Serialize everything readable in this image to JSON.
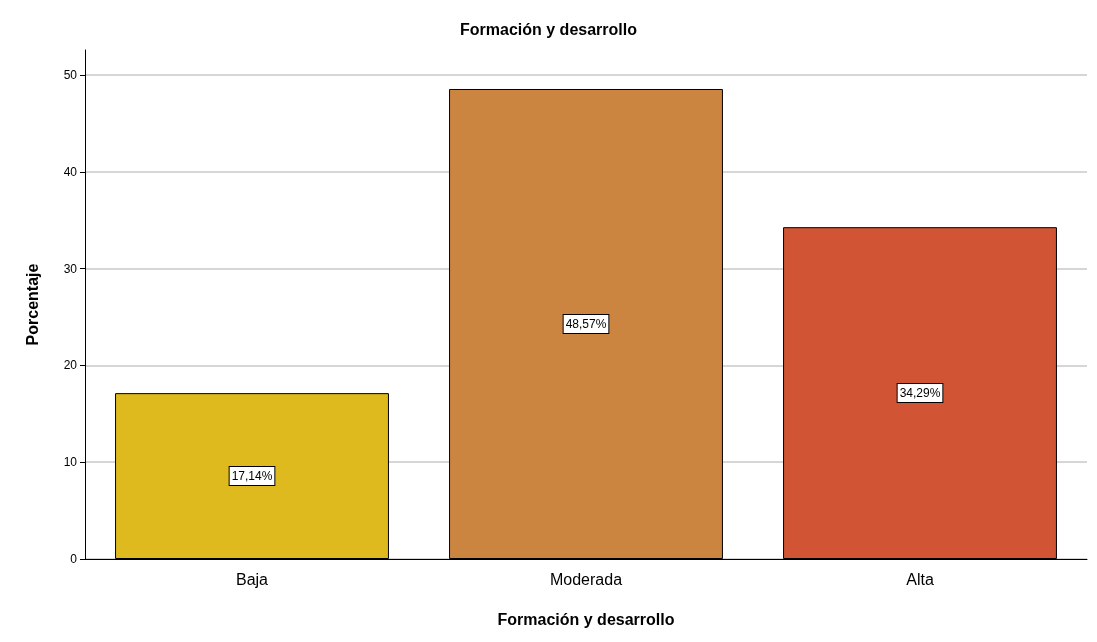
{
  "chart_data": {
    "type": "bar",
    "title": "Formación y desarrollo",
    "xlabel": "Formación y desarrollo",
    "ylabel": "Porcentaje",
    "categories": [
      "Baja",
      "Moderada",
      "Alta"
    ],
    "values": [
      17.14,
      48.57,
      34.29
    ],
    "colors": [
      "#dfba1f",
      "#cc8540",
      "#d15434"
    ],
    "value_labels": [
      "17,14%",
      "48,57%",
      "34,29%"
    ],
    "ylim": [
      0,
      52.6
    ],
    "yticks": [
      0,
      10,
      20,
      30,
      40,
      50
    ],
    "grid": "y"
  }
}
